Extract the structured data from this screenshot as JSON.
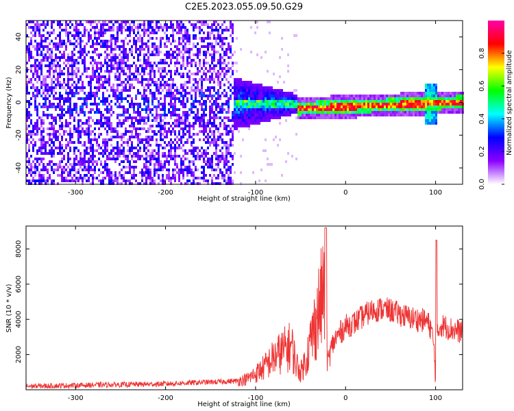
{
  "title": "C2E5.2023.055.09.50.G29",
  "chart_data": [
    {
      "type": "heatmap",
      "xlabel": "Height of straight line (km)",
      "ylabel": "Frequency (Hz)",
      "xlim": [
        -355,
        130
      ],
      "ylim": [
        -50,
        50
      ],
      "xticks": [
        -300,
        -200,
        -100,
        0,
        100
      ],
      "yticks": [
        -40,
        -20,
        0,
        20,
        40
      ],
      "colorbar": {
        "label": "Normalized spectral amplitude",
        "range": [
          0,
          1
        ],
        "ticks": [
          "0.0",
          "0.2",
          "0.4",
          "0.6",
          "0.8"
        ],
        "colors": [
          "#ffffff",
          "#8b00ff",
          "#0000ff",
          "#00ffff",
          "#00ff00",
          "#ffff00",
          "#ff0000",
          "#ff00aa"
        ]
      },
      "regions": [
        {
          "x_range": [
            -355,
            -125
          ],
          "description_level": 0.25,
          "freq_spread": [
            -50,
            50
          ]
        },
        {
          "x_range": [
            -125,
            -55
          ],
          "description_level": 0.4,
          "freq_spread": [
            -15,
            15
          ]
        },
        {
          "x_range": [
            -55,
            130
          ],
          "description_level": 0.85,
          "freq_spread": [
            -4,
            4
          ]
        }
      ]
    },
    {
      "type": "line",
      "xlabel": "Height of straight line (km)",
      "ylabel": "SNR (10 * v/v)",
      "xlim": [
        -355,
        130
      ],
      "ylim": [
        0,
        9300
      ],
      "xticks": [
        -300,
        -200,
        -100,
        0,
        100
      ],
      "yticks": [
        2000,
        4000,
        6000,
        8000
      ],
      "color": "#ee3333",
      "x": [
        -355,
        -330,
        -300,
        -270,
        -240,
        -210,
        -180,
        -160,
        -140,
        -120,
        -110,
        -100,
        -90,
        -80,
        -70,
        -60,
        -55,
        -50,
        -45,
        -40,
        -35,
        -30,
        -25,
        -22,
        -20,
        -15,
        -10,
        -5,
        0,
        10,
        20,
        30,
        40,
        50,
        60,
        70,
        80,
        90,
        95,
        98,
        100,
        102,
        105,
        110,
        120,
        130
      ],
      "y": [
        200,
        220,
        250,
        280,
        300,
        320,
        380,
        420,
        450,
        500,
        600,
        900,
        1300,
        1800,
        2200,
        2500,
        1500,
        1000,
        1600,
        2500,
        3500,
        4500,
        5500,
        6200,
        1500,
        2500,
        3000,
        3300,
        3600,
        3800,
        4200,
        4500,
        4600,
        4500,
        4300,
        4100,
        4000,
        3900,
        3500,
        2500,
        600,
        3000,
        3700,
        3600,
        3400,
        3300
      ]
    }
  ]
}
